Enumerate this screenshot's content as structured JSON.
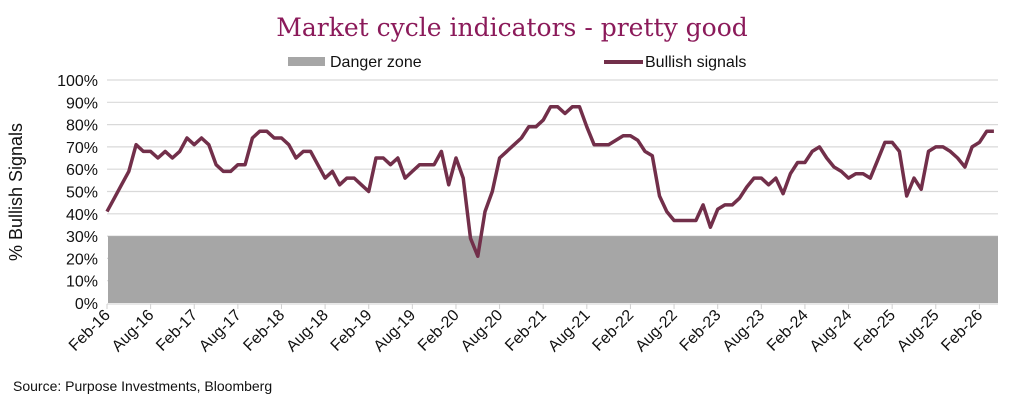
{
  "chart_data": {
    "type": "line",
    "title": "Market cycle indicators - pretty good",
    "ylabel": "% Bullish Signals",
    "xlabel": "",
    "ylim": [
      0,
      100
    ],
    "yticks": [
      "0%",
      "10%",
      "20%",
      "30%",
      "40%",
      "50%",
      "60%",
      "70%",
      "80%",
      "90%",
      "100%"
    ],
    "xticks": [
      "Feb-16",
      "Aug-16",
      "Feb-17",
      "Aug-17",
      "Feb-18",
      "Aug-18",
      "Feb-19",
      "Aug-19",
      "Feb-20",
      "Aug-20",
      "Feb-21",
      "Aug-21",
      "Feb-22",
      "Aug-22",
      "Feb-23",
      "Aug-23",
      "Feb-24",
      "Aug-24",
      "Feb-25",
      "Aug-25",
      "Feb-26"
    ],
    "x_start": "Feb-16",
    "x_frequency": "monthly",
    "grid": true,
    "legend_position": "top",
    "series": [
      {
        "name": "Danger zone",
        "type": "area",
        "color": "#a6a6a6",
        "values_constant": 30
      },
      {
        "name": "Bullish signals",
        "type": "line",
        "color": "#722f4a",
        "values": [
          41,
          47,
          53,
          59,
          71,
          68,
          68,
          65,
          68,
          65,
          68,
          74,
          71,
          74,
          71,
          62,
          59,
          59,
          62,
          62,
          74,
          77,
          77,
          74,
          74,
          71,
          65,
          68,
          68,
          62,
          56,
          59,
          53,
          56,
          56,
          53,
          50,
          65,
          65,
          62,
          65,
          56,
          59,
          62,
          62,
          62,
          68,
          53,
          65,
          56,
          29,
          21,
          41,
          50,
          65,
          68,
          71,
          74,
          79,
          79,
          82,
          88,
          88,
          85,
          88,
          88,
          79,
          71,
          71,
          71,
          73,
          75,
          75,
          73,
          68,
          66,
          48,
          41,
          37,
          37,
          37,
          37,
          44,
          34,
          42,
          44,
          44,
          47,
          52,
          56,
          56,
          53,
          56,
          49,
          58,
          63,
          63,
          68,
          70,
          65,
          61,
          59,
          56,
          58,
          58,
          56,
          64,
          72,
          72,
          68,
          48,
          56,
          51,
          68,
          70,
          70,
          68,
          65,
          61,
          70,
          72,
          77,
          77
        ]
      }
    ]
  },
  "title_color": "#8b1a5a",
  "source": "Source: Purpose Investments, Bloomberg"
}
